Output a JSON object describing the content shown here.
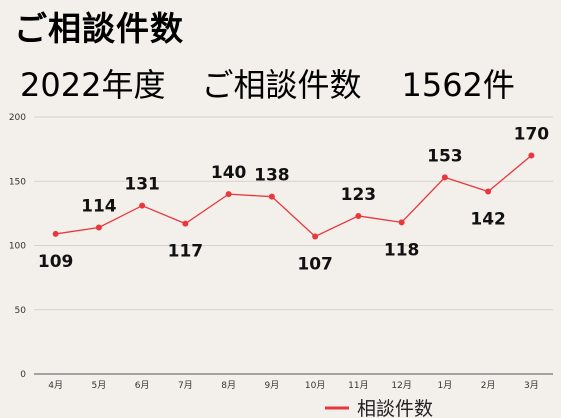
{
  "heading": "ご相談件数",
  "subheading": {
    "year": "2022年度",
    "label": "ご相談件数",
    "total": "1562件"
  },
  "chart_data": {
    "type": "line",
    "categories": [
      "4月",
      "5月",
      "6月",
      "7月",
      "8月",
      "9月",
      "10月",
      "11月",
      "12月",
      "1月",
      "2月",
      "3月"
    ],
    "series": [
      {
        "name": "相談件数",
        "values": [
          109,
          114,
          131,
          117,
          140,
          138,
          107,
          123,
          118,
          153,
          142,
          170
        ],
        "color": "#e8383d"
      }
    ],
    "ylim": [
      0,
      200
    ],
    "yticks": [
      0,
      50,
      100,
      150,
      200
    ],
    "grid": true,
    "legend": "bottom-center",
    "data_label_position": [
      "below",
      "above",
      "above",
      "below",
      "above",
      "above",
      "below",
      "above",
      "below",
      "above",
      "below",
      "above"
    ]
  }
}
